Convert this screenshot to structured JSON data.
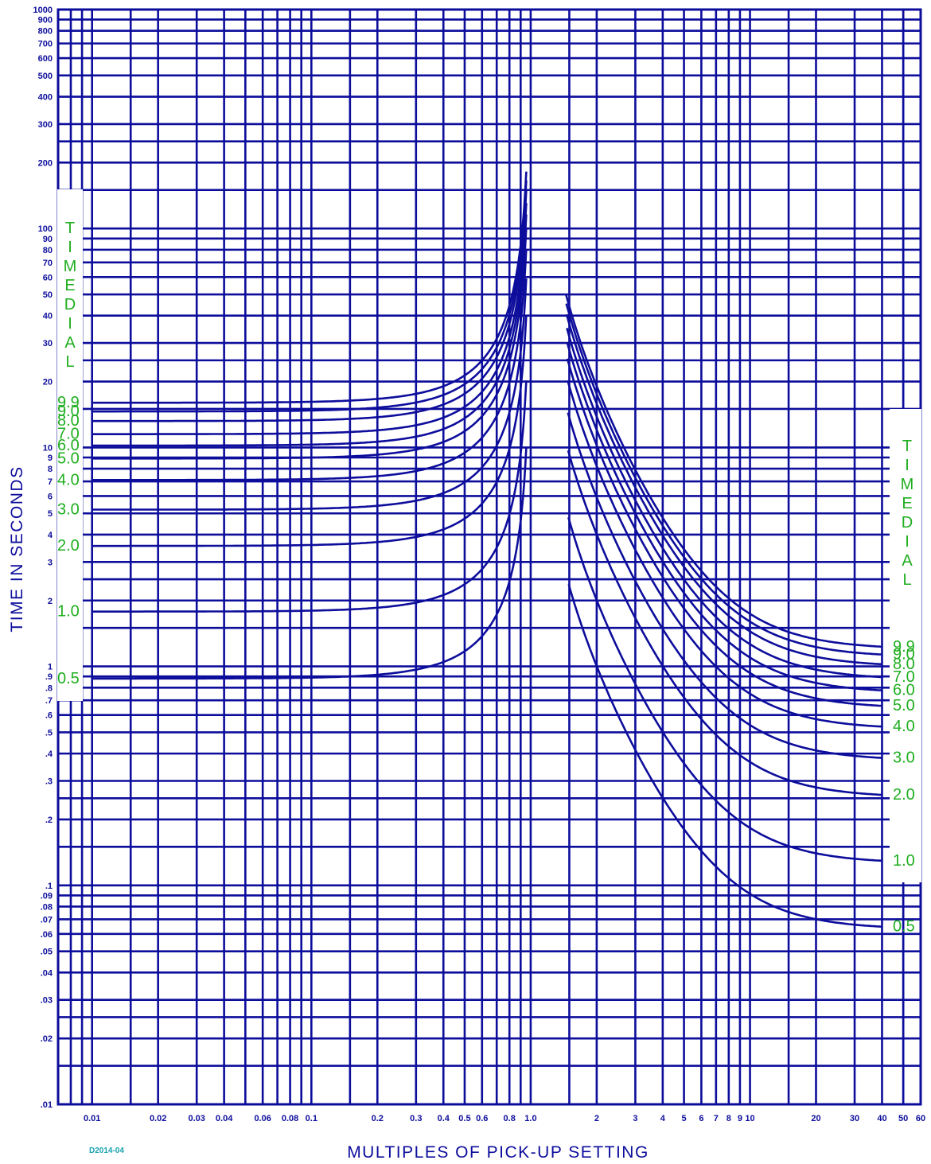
{
  "chart_data": {
    "type": "line",
    "title": "",
    "xlabel": "MULTIPLES OF PICK-UP SETTING",
    "ylabel": "TIME IN SECONDS",
    "xscale": "log",
    "yscale": "log",
    "xlim": [
      0.007,
      60
    ],
    "ylim": [
      0.01,
      1000
    ],
    "grid": true,
    "x_ticks": [
      {
        "value": 0.01,
        "label": "0.01"
      },
      {
        "value": 0.02,
        "label": "0.02"
      },
      {
        "value": 0.03,
        "label": "0.03"
      },
      {
        "value": 0.04,
        "label": "0.04"
      },
      {
        "value": 0.06,
        "label": "0.06"
      },
      {
        "value": 0.08,
        "label": "0.08"
      },
      {
        "value": 0.1,
        "label": "0.1"
      },
      {
        "value": 0.2,
        "label": "0.2"
      },
      {
        "value": 0.3,
        "label": "0.3"
      },
      {
        "value": 0.4,
        "label": "0.4"
      },
      {
        "value": 0.5,
        "label": "0.5"
      },
      {
        "value": 0.6,
        "label": "0.6"
      },
      {
        "value": 0.8,
        "label": "0.8"
      },
      {
        "value": 1.0,
        "label": "1.0"
      },
      {
        "value": 2,
        "label": "2"
      },
      {
        "value": 3,
        "label": "3"
      },
      {
        "value": 4,
        "label": "4"
      },
      {
        "value": 5,
        "label": "5"
      },
      {
        "value": 6,
        "label": "6"
      },
      {
        "value": 7,
        "label": "7"
      },
      {
        "value": 8,
        "label": "8"
      },
      {
        "value": 9,
        "label": "9"
      },
      {
        "value": 10,
        "label": "10"
      },
      {
        "value": 20,
        "label": "20"
      },
      {
        "value": 30,
        "label": "30"
      },
      {
        "value": 40,
        "label": "40"
      },
      {
        "value": 50,
        "label": "50"
      },
      {
        "value": 60,
        "label": "60"
      }
    ],
    "y_ticks": [
      {
        "value": 1000,
        "label": "1000"
      },
      {
        "value": 900,
        "label": "900"
      },
      {
        "value": 800,
        "label": "800"
      },
      {
        "value": 700,
        "label": "700"
      },
      {
        "value": 600,
        "label": "600"
      },
      {
        "value": 500,
        "label": "500"
      },
      {
        "value": 400,
        "label": "400"
      },
      {
        "value": 300,
        "label": "300"
      },
      {
        "value": 200,
        "label": "200"
      },
      {
        "value": 100,
        "label": "100"
      },
      {
        "value": 90,
        "label": "90"
      },
      {
        "value": 80,
        "label": "80"
      },
      {
        "value": 70,
        "label": "70"
      },
      {
        "value": 60,
        "label": "60"
      },
      {
        "value": 50,
        "label": "50"
      },
      {
        "value": 40,
        "label": "40"
      },
      {
        "value": 30,
        "label": "30"
      },
      {
        "value": 20,
        "label": "20"
      },
      {
        "value": 10,
        "label": "10"
      },
      {
        "value": 9,
        "label": "9"
      },
      {
        "value": 8,
        "label": "8"
      },
      {
        "value": 7,
        "label": "7"
      },
      {
        "value": 6,
        "label": "6"
      },
      {
        "value": 5,
        "label": "5"
      },
      {
        "value": 4,
        "label": "4"
      },
      {
        "value": 3,
        "label": "3"
      },
      {
        "value": 2,
        "label": "2"
      },
      {
        "value": 1,
        "label": "1"
      },
      {
        "value": 0.9,
        "label": ".9"
      },
      {
        "value": 0.8,
        "label": ".8"
      },
      {
        "value": 0.7,
        "label": ".7"
      },
      {
        "value": 0.6,
        "label": ".6"
      },
      {
        "value": 0.5,
        "label": ".5"
      },
      {
        "value": 0.4,
        "label": ".4"
      },
      {
        "value": 0.3,
        "label": ".3"
      },
      {
        "value": 0.2,
        "label": ".2"
      },
      {
        "value": 0.1,
        "label": ".1"
      },
      {
        "value": 0.09,
        "label": ".09"
      },
      {
        "value": 0.08,
        "label": ".08"
      },
      {
        "value": 0.07,
        "label": ".07"
      },
      {
        "value": 0.06,
        "label": ".06"
      },
      {
        "value": 0.05,
        "label": ".05"
      },
      {
        "value": 0.04,
        "label": ".04"
      },
      {
        "value": 0.03,
        "label": ".03"
      },
      {
        "value": 0.02,
        "label": ".02"
      },
      {
        "value": 0.01,
        "label": ".01"
      }
    ],
    "curve_shape": {
      "below_pickup_base": 0.9,
      "above_pickup_base": 1.3
    },
    "dial_settings": [
      {
        "label": "9.9",
        "left": 16.0,
        "right": 1.9
      },
      {
        "label": "9.0",
        "left": 14.6,
        "right": 1.75
      },
      {
        "label": "8.0",
        "left": 13.2,
        "right": 1.58
      },
      {
        "label": "7.0",
        "left": 11.5,
        "right": 1.38
      },
      {
        "label": "6.0",
        "left": 10.2,
        "right": 1.2
      },
      {
        "label": "5.0",
        "left": 8.9,
        "right": 1.02
      },
      {
        "label": "4.0",
        "left": 7.1,
        "right": 0.82
      },
      {
        "label": "3.0",
        "left": 5.2,
        "right": 0.59
      },
      {
        "label": "2.0",
        "left": 3.55,
        "right": 0.4
      },
      {
        "label": "1.0",
        "left": 1.78,
        "right": 0.2
      },
      {
        "label": "0.5",
        "left": 0.88,
        "right": 0.1
      }
    ],
    "dial_text": "TIME DIAL",
    "figure_code": "D2014-04",
    "colors": {
      "grid": "#0d0d9c",
      "dial_labels": "#1fae1f",
      "figure_code": "#19a2b2"
    }
  }
}
